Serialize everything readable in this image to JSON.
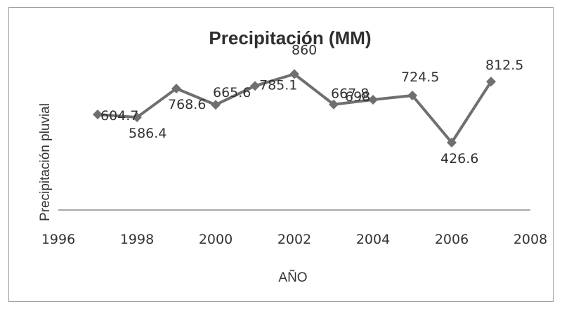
{
  "chart_data": {
    "type": "line",
    "title": "Precipitación (MM)",
    "xlabel": "AÑO",
    "ylabel": "Precipitación pluvial",
    "xlim": [
      1996,
      2008
    ],
    "ylim": [
      0,
      1200
    ],
    "x_ticks": [
      "1996",
      "1998",
      "2000",
      "2002",
      "2004",
      "2006",
      "2008"
    ],
    "grid": false,
    "legend": "none",
    "series": [
      {
        "x": [
          1997,
          1998,
          1999,
          2000,
          2001,
          2002,
          2003,
          2004,
          2005,
          2006,
          2007
        ],
        "values": [
          604.7,
          586.4,
          768.6,
          665.6,
          785.1,
          860,
          667.8,
          698,
          724.5,
          426.6,
          812.5
        ],
        "labels": [
          "604.7",
          "586.4",
          "768.6",
          "665.6",
          "785.1",
          "860",
          "667.8",
          "698",
          "724.5",
          "426.6",
          "812.5"
        ],
        "color": "#6f6f6f"
      }
    ]
  }
}
